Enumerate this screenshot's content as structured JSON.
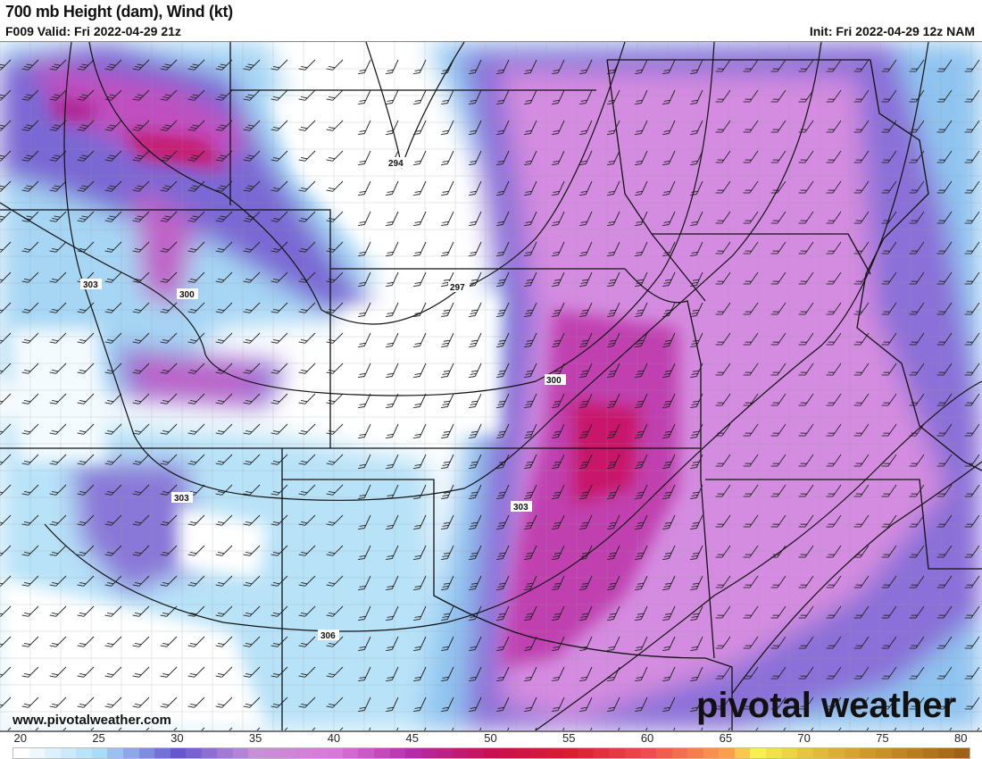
{
  "header": {
    "title": "700 mb Height (dam), Wind (kt)",
    "valid": "F009 Valid: Fri 2022-04-29 21z",
    "init": "Init: Fri 2022-04-29 12z NAM"
  },
  "map": {
    "contour_labels": [
      "294",
      "297",
      "300",
      "300",
      "303",
      "303",
      "303",
      "306"
    ],
    "contour_levels_dam": [
      294,
      297,
      300,
      303,
      306
    ]
  },
  "watermark": {
    "site": "www.pivotalweather.com",
    "logo": "pivotal weather"
  },
  "colorbar": {
    "unit": "kt",
    "min": 20,
    "max": 81,
    "tick_labels": [
      "20",
      "25",
      "30",
      "35",
      "40",
      "45",
      "50",
      "55",
      "60",
      "65",
      "70",
      "75",
      "80"
    ],
    "anchor_colors": {
      "20": "#ffffff",
      "25": "#a8dcf8",
      "30": "#6658cc",
      "35": "#c890d8",
      "40": "#d878d8",
      "45": "#b42ca8",
      "50": "#c81050",
      "55": "#d81e30",
      "60": "#f04c50",
      "65": "#f8a050",
      "67": "#f8f050",
      "70": "#e8c440",
      "75": "#c89028",
      "80": "#a06018"
    }
  }
}
